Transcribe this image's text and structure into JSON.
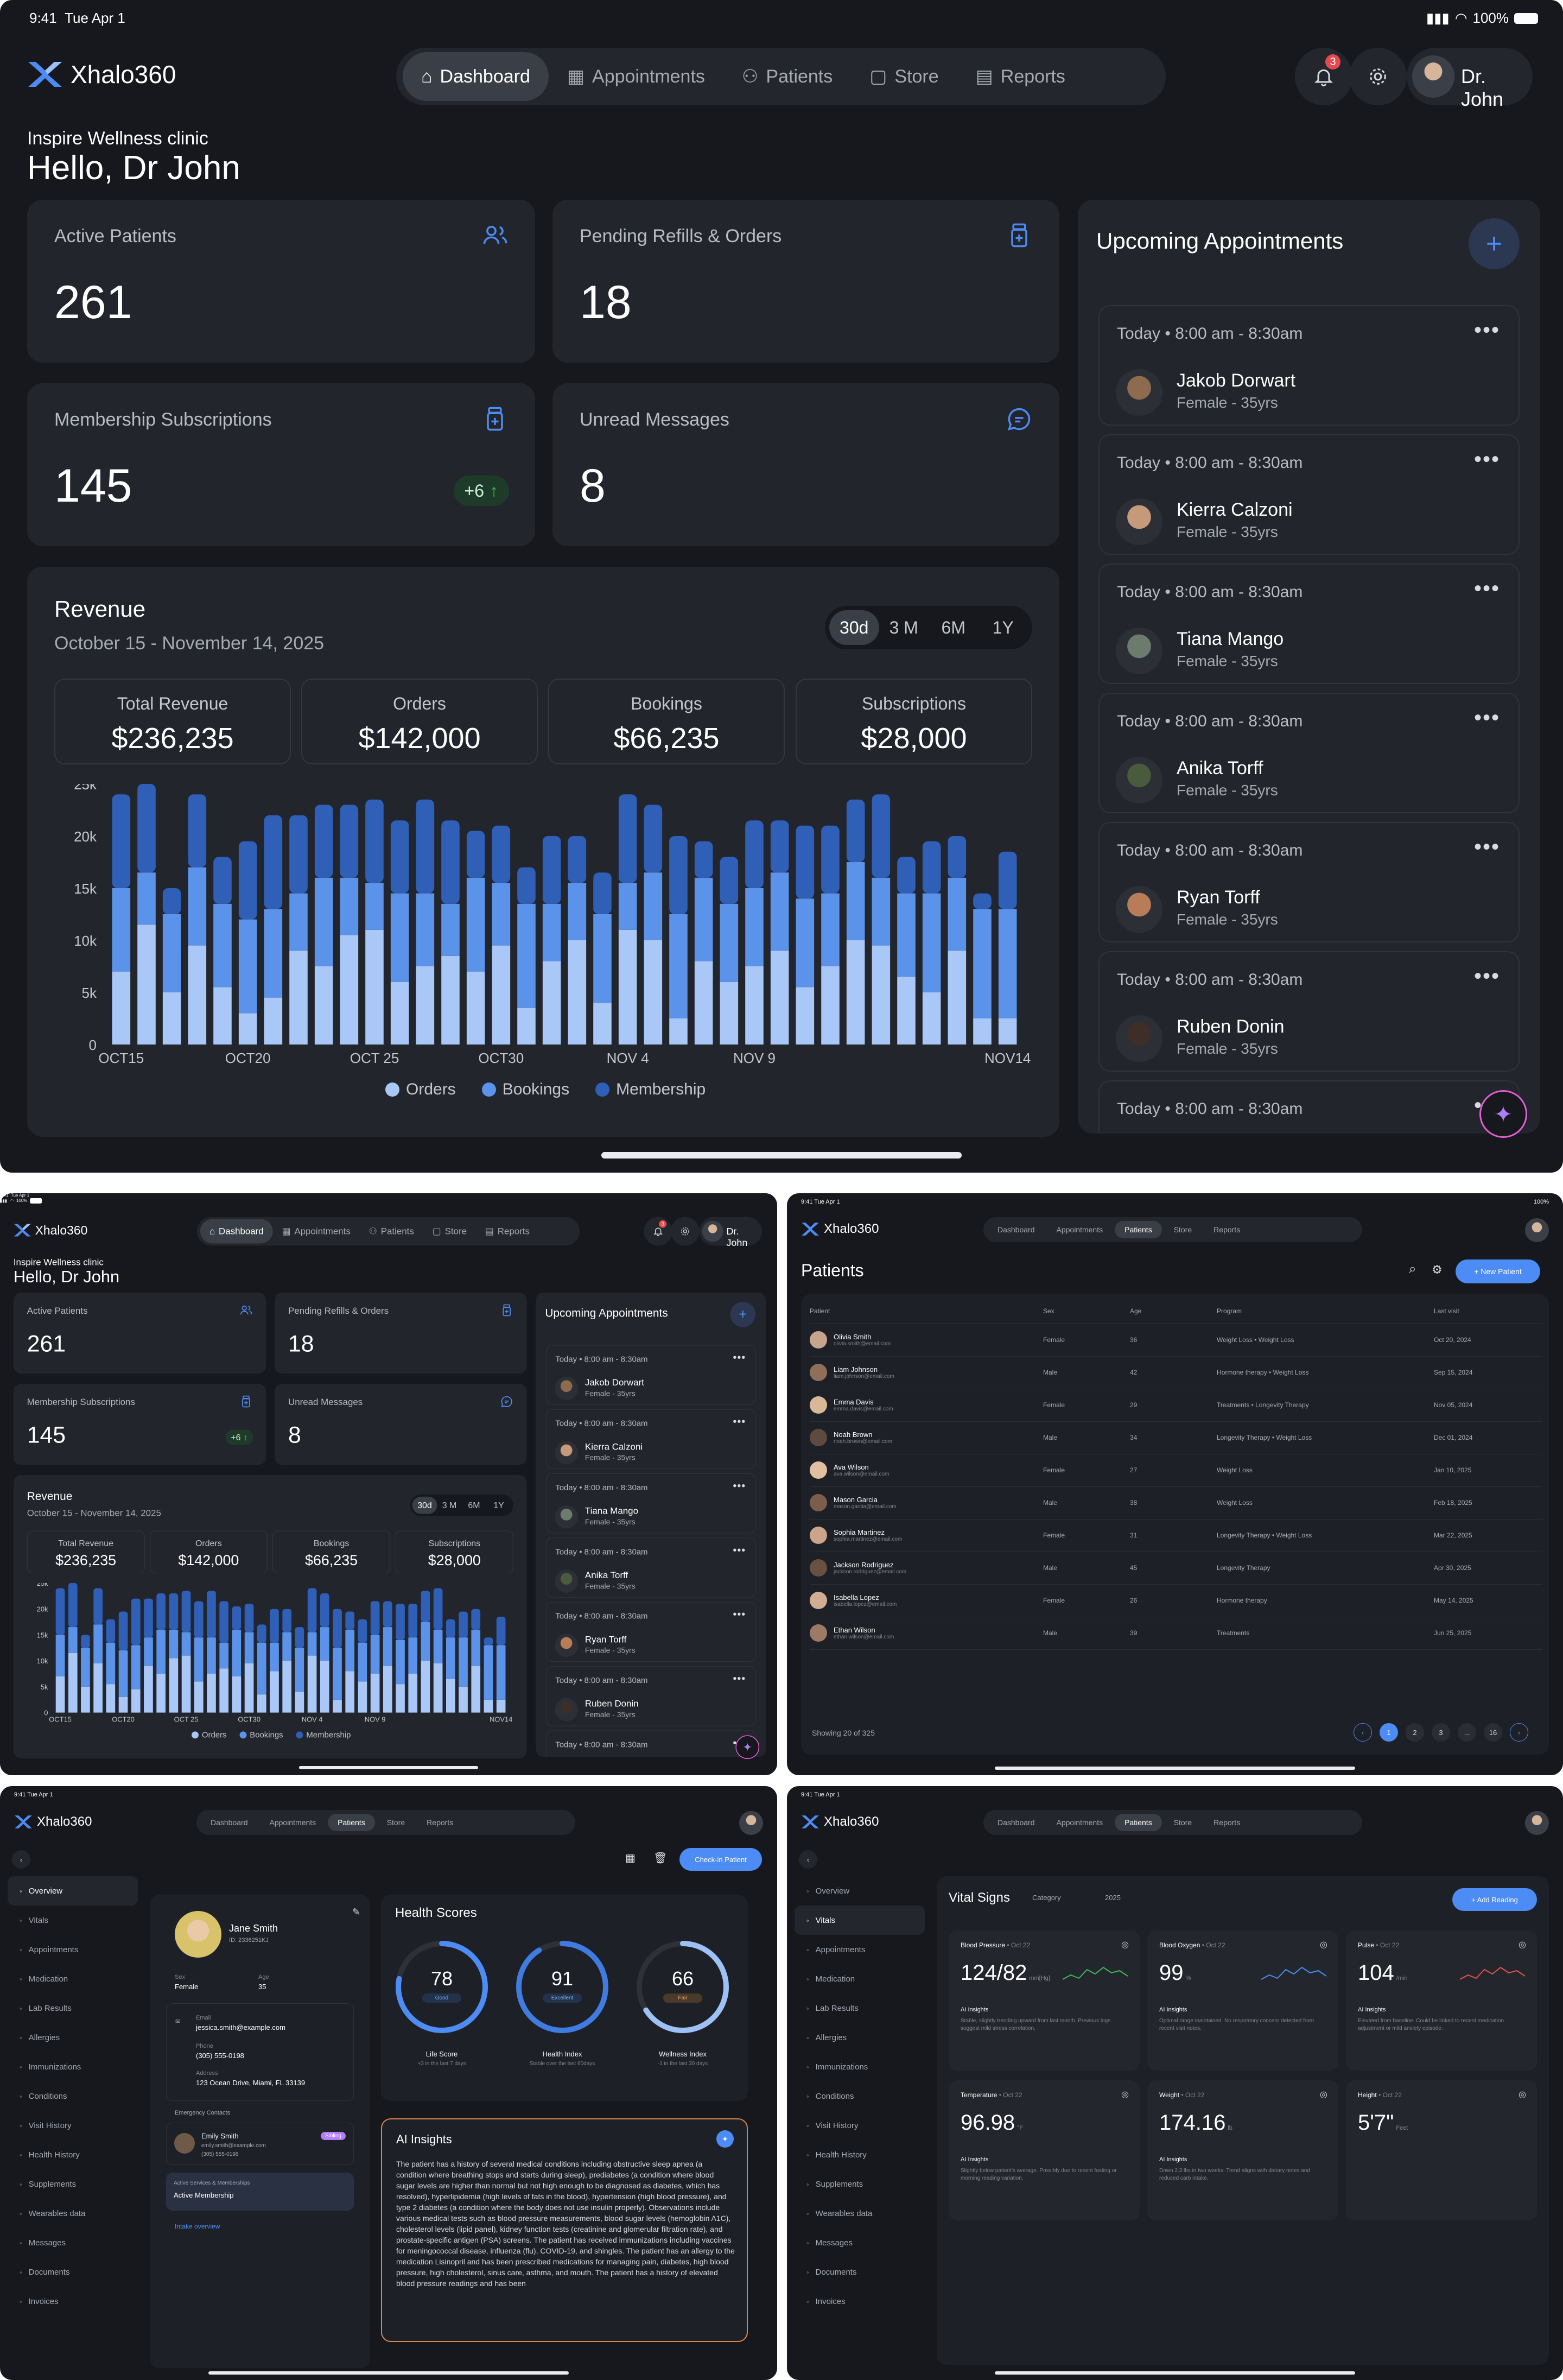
{
  "status": {
    "time": "9:41",
    "date": "Tue Apr 1",
    "battery": "100%"
  },
  "brand": {
    "name": "Xhalo360",
    "accent": "#4d8cf5"
  },
  "nav": {
    "items": [
      "Dashboard",
      "Appointments",
      "Patients",
      "Store",
      "Reports"
    ],
    "active": "Dashboard"
  },
  "user": {
    "name": "Dr. John",
    "notifications": "3"
  },
  "greeting": {
    "clinic": "Inspire Wellness clinic",
    "hello": "Hello, Dr John"
  },
  "stats": [
    {
      "label": "Active Patients",
      "value": "261",
      "icon": "users-icon"
    },
    {
      "label": "Pending Refills & Orders",
      "value": "18",
      "icon": "bottle-icon"
    },
    {
      "label": "Membership Subscriptions",
      "value": "145",
      "badge": "+6",
      "icon": "bottle-icon"
    },
    {
      "label": "Unread Messages",
      "value": "8",
      "icon": "message-icon"
    }
  ],
  "revenue": {
    "title": "Revenue",
    "range": "October 15 - November 14, 2025",
    "periods": [
      "30d",
      "3 M",
      "6M",
      "1Y"
    ],
    "active_period": "30d",
    "kpis": [
      {
        "label": "Total Revenue",
        "value": "$236,235"
      },
      {
        "label": "Orders",
        "value": "$142,000"
      },
      {
        "label": "Bookings",
        "value": "$66,235"
      },
      {
        "label": "Subscriptions",
        "value": "$28,000"
      }
    ]
  },
  "chart_data": {
    "type": "bar",
    "stacked": true,
    "x_tick_labels": [
      "OCT15",
      "OCT20",
      "OCT 25",
      "OCT30",
      "NOV 4",
      "NOV 9",
      "NOV14"
    ],
    "yticks": [
      "25k",
      "20k",
      "15k",
      "10k",
      "5k",
      "0"
    ],
    "ylim": [
      0,
      25000
    ],
    "series": [
      {
        "name": "Orders",
        "color": "#a9c7f7",
        "values": [
          7000,
          11500,
          5000,
          9500,
          5500,
          3000,
          4500,
          9000,
          7500,
          10500,
          11000,
          6000,
          7500,
          8500,
          7000,
          9500,
          3500,
          8000,
          10000,
          4000,
          11000,
          10000,
          2500,
          8000,
          6000,
          7500,
          9000,
          5500,
          7500,
          10000,
          9500,
          6500,
          5000,
          9000,
          2500,
          2500
        ]
      },
      {
        "name": "Bookings",
        "color": "#5b93eb",
        "values": [
          8000,
          5000,
          7500,
          7500,
          8000,
          9000,
          8500,
          5500,
          8500,
          5500,
          4500,
          8500,
          7000,
          5000,
          9000,
          6000,
          10000,
          5500,
          5500,
          8500,
          4500,
          6500,
          10000,
          8000,
          7500,
          7500,
          7500,
          8500,
          7000,
          7500,
          6500,
          8000,
          9500,
          7000,
          10500,
          10500
        ]
      },
      {
        "name": "Membership",
        "color": "#2f5fb6",
        "values": [
          9000,
          8500,
          2500,
          7000,
          4500,
          7500,
          9000,
          7500,
          7000,
          7000,
          8000,
          7000,
          9000,
          8000,
          4500,
          5500,
          3500,
          6500,
          4500,
          4000,
          8500,
          6500,
          7500,
          3500,
          4500,
          6500,
          5000,
          7000,
          6500,
          6000,
          8000,
          3500,
          5000,
          4000,
          1500,
          5500
        ]
      }
    ]
  },
  "appointments": {
    "title": "Upcoming Appointments",
    "items": [
      {
        "day": "Today",
        "time": "8:00 am - 8:30am",
        "name": "Jakob Dorwart",
        "info": "Female - 35yrs"
      },
      {
        "day": "Today",
        "time": "8:00 am - 8:30am",
        "name": "Kierra Calzoni",
        "info": "Female - 35yrs"
      },
      {
        "day": "Today",
        "time": "8:00 am - 8:30am",
        "name": "Tiana Mango",
        "info": "Female - 35yrs"
      },
      {
        "day": "Today",
        "time": "8:00 am - 8:30am",
        "name": "Anika Torff",
        "info": "Female - 35yrs"
      },
      {
        "day": "Today",
        "time": "8:00 am - 8:30am",
        "name": "Ryan Torff",
        "info": "Female - 35yrs"
      },
      {
        "day": "Today",
        "time": "8:00 am - 8:30am",
        "name": "Ruben Donin",
        "info": "Female - 35yrs"
      },
      {
        "day": "Today",
        "time": "8:00 am - 8:30am",
        "name": "",
        "info": ""
      }
    ]
  },
  "patients_screen": {
    "title": "Patients",
    "new_patient": "+ New Patient",
    "columns": [
      "Patient",
      "Sex",
      "Age",
      "Program",
      "Last visit"
    ],
    "rows": [
      [
        "Olivia Smith",
        "olivia.smith@email.com",
        "Female",
        "36",
        "Weight Loss  •  Weight Loss",
        "Oct 20, 2024"
      ],
      [
        "Liam Johnson",
        "liam.johnson@email.com",
        "Male",
        "42",
        "Hormone therapy  •  Weight Loss",
        "Sep 15, 2024"
      ],
      [
        "Emma Davis",
        "emma.davis@email.com",
        "Female",
        "29",
        "Treatments  •  Longevity Therapy",
        "Nov 05, 2024"
      ],
      [
        "Noah Brown",
        "noah.brown@email.com",
        "Male",
        "34",
        "Longevity Therapy  •  Weight Loss",
        "Dec 01, 2024"
      ],
      [
        "Ava Wilson",
        "ava.wilson@email.com",
        "Female",
        "27",
        "Weight Loss",
        "Jan 10, 2025"
      ],
      [
        "Mason Garcia",
        "mason.garcia@email.com",
        "Male",
        "38",
        "Weight Loss",
        "Feb 18, 2025"
      ],
      [
        "Sophia Martinez",
        "sophia.martinez@email.com",
        "Female",
        "31",
        "Longevity Therapy  •  Weight Loss",
        "Mar 22, 2025"
      ],
      [
        "Jackson Rodriguez",
        "jackson.rodriguez@email.com",
        "Male",
        "45",
        "Longevity Therapy",
        "Apr 30, 2025"
      ],
      [
        "Isabella Lopez",
        "isabella.lopez@email.com",
        "Female",
        "26",
        "Hormone therapy",
        "May 14, 2025"
      ],
      [
        "Ethan Wilson",
        "ethan.wilson@email.com",
        "Male",
        "39",
        "Treatments",
        "Jun 25, 2025"
      ]
    ],
    "footer": "Showing 20 of 325",
    "pages": [
      "1",
      "2",
      "3",
      "...",
      "16"
    ]
  },
  "side_menu": [
    "Overview",
    "Vitals",
    "Appointments",
    "Medication",
    "Lab Results",
    "Allergies",
    "Immunizations",
    "Conditions",
    "Visit History",
    "Health History",
    "Supplements",
    "Wearables data",
    "Messages",
    "Documents",
    "Invoices"
  ],
  "overview_screen": {
    "checkin": "Check-in Patient",
    "patient": {
      "name": "Jane Smith",
      "id": "ID: 2336251KJ",
      "sex_label": "Sex",
      "sex": "Female",
      "age_label": "Age",
      "age": "35"
    },
    "contact": {
      "email_label": "Email",
      "email": "jessica.smith@example.com",
      "phone_label": "Phone",
      "phone": "(305) 555-0198",
      "address_label": "Address",
      "address": "123 Ocean Drive, Miami, FL 33139"
    },
    "emergency": {
      "label": "Emergency Contacts",
      "name": "Emily Smith",
      "tag": "Sibling",
      "email": "emily.smith@example.com",
      "phone": "(305) 555-0198"
    },
    "membership": {
      "label": "Active Services & Memberships",
      "value": "Active Membership"
    },
    "intake": "Intake overview",
    "scores_title": "Health Scores",
    "scores": [
      {
        "value": "78",
        "tag": "Good",
        "label": "Life Score",
        "sub": "+3 in the last 7 days",
        "pct": 0.78,
        "color": "#4d8cf5"
      },
      {
        "value": "91",
        "tag": "Excellent",
        "label": "Health Index",
        "sub": "Stable over the last 60days",
        "pct": 0.91,
        "color": "#3f7be0"
      },
      {
        "value": "66",
        "tag": "Fair",
        "label": "Wellness Index",
        "sub": "-1 in the last 30 days",
        "pct": 0.66,
        "color": "#9ec1f5"
      }
    ],
    "ai_title": "AI Insights",
    "ai_text": "The patient has a history of several medical conditions including obstructive sleep apnea (a condition where breathing stops and starts during sleep), prediabetes (a condition where blood sugar levels are higher than normal but not high enough to be diagnosed as diabetes, which has resolved), hyperlipidemia (high levels of fats in the blood), hypertension (high blood pressure), and type 2 diabetes (a condition where the body does not use insulin properly). Observations include various medical tests such as blood pressure measurements, blood sugar levels (hemoglobin A1C), cholesterol levels (lipid panel), kidney function tests (creatinine and glomerular filtration rate), and prostate-specific antigen (PSA) screens. The patient has received immunizations including vaccines for meningococcal disease, influenza (flu), COVID-19, and shingles. The patient has an allergy to the medication Lisinopril and has been prescribed medications for managing pain, diabetes, high blood pressure, high cholesterol, sinus care, asthma, and mouth. The patient has a history of elevated blood pressure readings and has been"
  },
  "vitals_screen": {
    "title": "Vital Signs",
    "category": "Category",
    "year": "2025",
    "add": "+ Add Reading",
    "cards": [
      {
        "name": "Blood Pressure",
        "date": "Oct 22",
        "value": "124/82",
        "unit": "mm[Hg]",
        "insight": "Stable, slightly trending upward from last month. Previous logs suggest mild stress correlation.",
        "color": "#3fb950"
      },
      {
        "name": "Blood Oxygen",
        "date": "Oct 22",
        "value": "99",
        "unit": "%",
        "insight": "Optimal range maintained. No respiratory concern detected from recent visit notes.",
        "color": "#4d8cf5"
      },
      {
        "name": "Pulse",
        "date": "Oct 22",
        "value": "104",
        "unit": "/min",
        "insight": "Elevated from baseline. Could be linked to recent medication adjustment or mild anxiety episode.",
        "color": "#e5534b"
      },
      {
        "name": "Temperature",
        "date": "Oct 22",
        "value": "96.98",
        "unit": "°F",
        "insight": "Slightly below patient's average. Possibly due to recent fasting or morning reading variation."
      },
      {
        "name": "Weight",
        "date": "Oct 22",
        "value": "174.16",
        "unit": "lb",
        "insight": "Down 2.3 lbs in two weeks. Trend aligns with dietary notes and reduced carb intake."
      },
      {
        "name": "Height",
        "date": "Oct 22",
        "value": "5'7\"",
        "unit": "Feet",
        "insight": ""
      }
    ],
    "ai_label": "AI Insights"
  }
}
